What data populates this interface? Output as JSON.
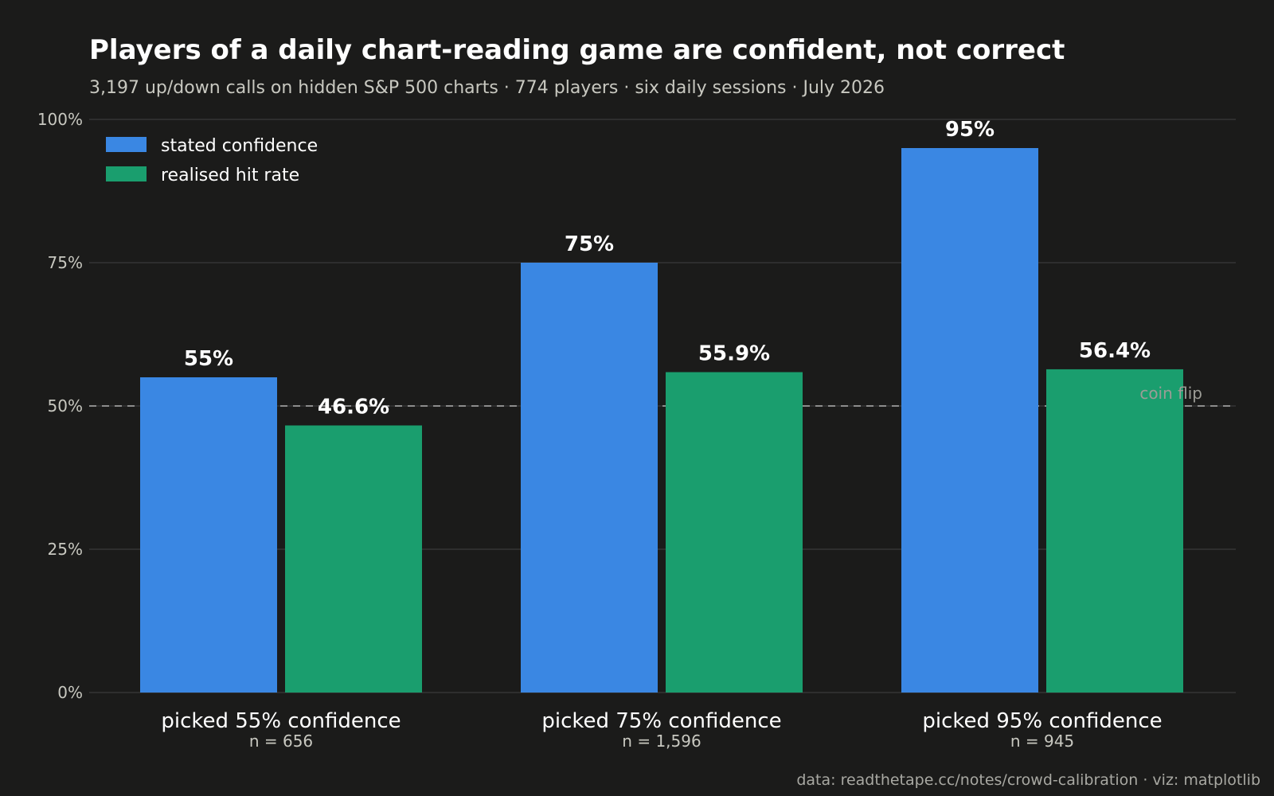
{
  "title": "Players of a daily chart-reading game are confident, not correct",
  "subtitle": "3,197 up/down calls on hidden S&P 500 charts · 774 players · six daily sessions · July 2026",
  "source": "data: readthetape.cc/notes/crowd-calibration · viz: matplotlib",
  "colors": {
    "background": "#1b1b1a",
    "stated": "#3a87e3",
    "realised": "#1a9e6e"
  },
  "chart_data": {
    "type": "bar",
    "categories": [
      "picked 55% confidence",
      "picked 75% confidence",
      "picked 95% confidence"
    ],
    "category_sublabels": [
      "n = 656",
      "n = 1,596",
      "n = 945"
    ],
    "series": [
      {
        "name": "stated confidence",
        "values": [
          55,
          75,
          95
        ],
        "labels": [
          "55%",
          "75%",
          "95%"
        ],
        "color": "#3a87e3"
      },
      {
        "name": "realised hit rate",
        "values": [
          46.6,
          55.9,
          56.4
        ],
        "labels": [
          "46.6%",
          "55.9%",
          "56.4%"
        ],
        "color": "#1a9e6e"
      }
    ],
    "ylim": [
      0,
      100
    ],
    "yticks": [
      0,
      25,
      50,
      75,
      100
    ],
    "ytick_labels": [
      "0%",
      "25%",
      "50%",
      "75%",
      "100%"
    ],
    "reference_line": {
      "value": 50,
      "label": "coin flip",
      "style": "dashed"
    },
    "grid": true,
    "legend_position": "top-left"
  }
}
